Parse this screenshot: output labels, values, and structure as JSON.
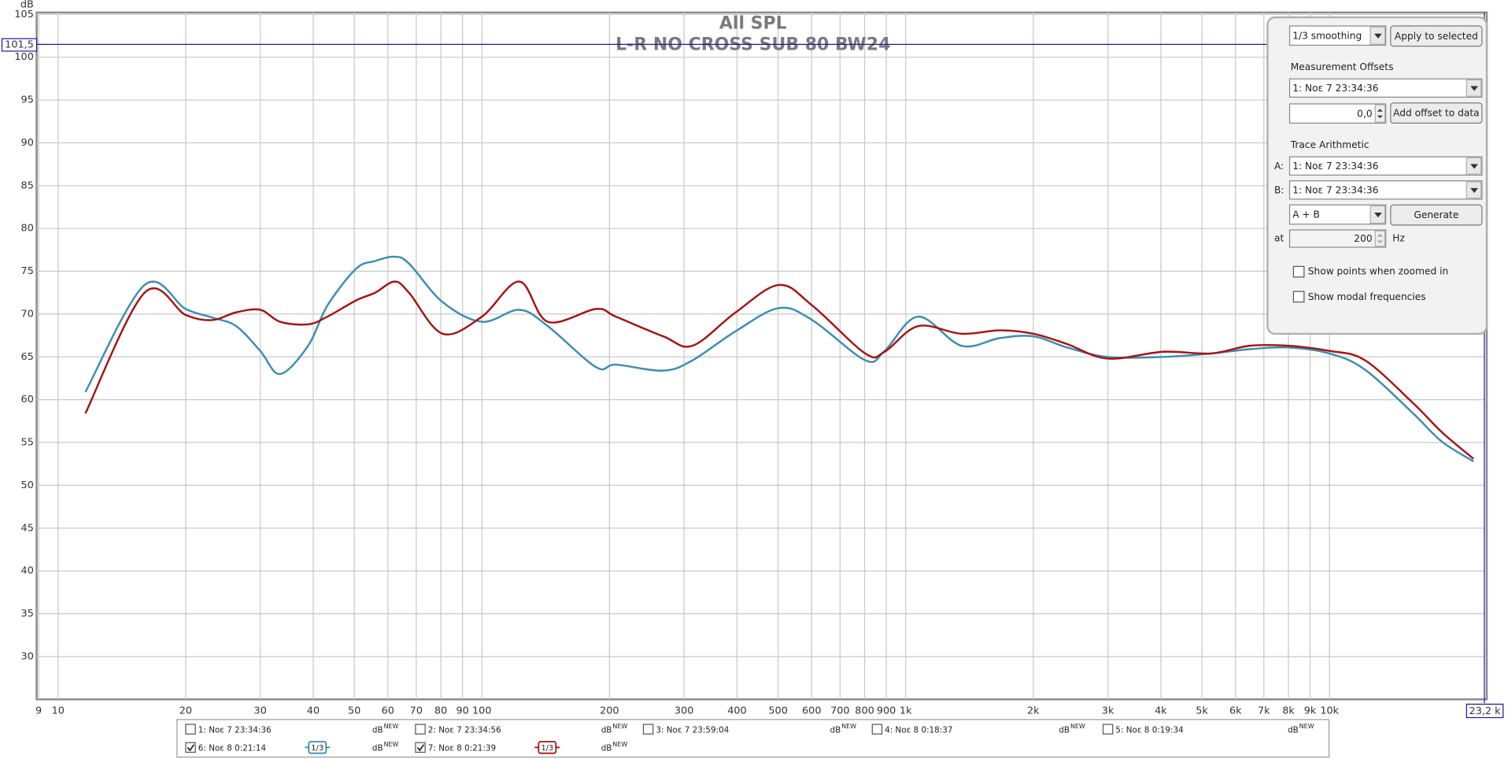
{
  "chart_data": {
    "type": "line",
    "title": "All SPL",
    "subtitle": "L-R NO CROSS SUB 80 BW24",
    "y_label": "dB",
    "log_x": true,
    "grid": true,
    "xlim": [
      8.9,
      23500
    ],
    "ylim": [
      25,
      105
    ],
    "xticks": [
      9,
      10,
      20,
      30,
      40,
      50,
      60,
      70,
      80,
      90,
      100,
      200,
      300,
      400,
      500,
      600,
      700,
      800,
      900,
      {
        "value": 1000,
        "label": "1k"
      },
      {
        "value": 2000,
        "label": "2k"
      },
      {
        "value": 3000,
        "label": "3k"
      },
      {
        "value": 4000,
        "label": "4k"
      },
      {
        "value": 5000,
        "label": "5k"
      },
      {
        "value": 6000,
        "label": "6k"
      },
      {
        "value": 7000,
        "label": "7k"
      },
      {
        "value": 8000,
        "label": "8k"
      },
      {
        "value": 9000,
        "label": "9k"
      },
      {
        "value": 10000,
        "label": "10k"
      }
    ],
    "yticks": [
      30,
      35,
      40,
      45,
      50,
      55,
      60,
      65,
      70,
      75,
      80,
      85,
      90,
      95,
      100,
      105
    ],
    "cursor": {
      "y": {
        "value": 101.5,
        "label": "101,5"
      },
      "x": {
        "value": 23200,
        "label": "23,2 k"
      },
      "color": "#1a1aa8"
    },
    "x": [
      11.6,
      16,
      20,
      23.1,
      26.3,
      30,
      33.4,
      38.9,
      43.2,
      50.5,
      56,
      62.2,
      67.3,
      80.8,
      100,
      122.6,
      143,
      186,
      207,
      268,
      314,
      397,
      502,
      602,
      803,
      892,
      1070,
      1354,
      1668,
      2003,
      2404,
      2994,
      4053,
      5260,
      6484,
      7990,
      10000,
      12130,
      15750,
      18420,
      21870
    ],
    "series": [
      {
        "name": "6: Noε 8 0:21:14",
        "color": "#3a8db5",
        "checked": true,
        "values": [
          60.9,
          73.4,
          70.6,
          69.6,
          68.6,
          65.7,
          63.0,
          66.3,
          71.0,
          75.3,
          76.2,
          76.7,
          75.9,
          71.4,
          69.1,
          70.5,
          68.6,
          63.8,
          64.1,
          63.4,
          64.6,
          68.0,
          70.7,
          69.3,
          64.6,
          65.7,
          69.7,
          66.3,
          67.2,
          67.4,
          66.1,
          65.0,
          65.0,
          65.4,
          65.9,
          66.1,
          65.4,
          63.5,
          58.4,
          55.1,
          52.8
        ]
      },
      {
        "name": "7: Noε 8 0:21:39",
        "color": "#a81212",
        "checked": true,
        "values": [
          58.4,
          72.5,
          69.9,
          69.3,
          70.2,
          70.5,
          69.1,
          68.8,
          69.7,
          71.6,
          72.5,
          73.8,
          72.5,
          67.7,
          69.7,
          73.8,
          69.1,
          70.6,
          69.7,
          67.4,
          66.3,
          70.2,
          73.4,
          71.0,
          65.4,
          65.6,
          68.6,
          67.7,
          68.1,
          67.7,
          66.5,
          64.8,
          65.6,
          65.4,
          66.3,
          66.3,
          65.7,
          64.6,
          59.6,
          56.2,
          53.1
        ]
      }
    ]
  },
  "legend": {
    "unit": "dB",
    "unit_tag": "NEW",
    "smoothing_badge": "1/3",
    "measurements": [
      {
        "name": "1: Noε 7 23:34:36",
        "color": "#3c3ca0",
        "checked": false
      },
      {
        "name": "2: Noε 7 23:34:56",
        "color": "#b03060",
        "checked": false
      },
      {
        "name": "3: Noε 7 23:59:04",
        "color": "#3a8db5",
        "checked": false
      },
      {
        "name": "4: Noε 8 0:18:37",
        "color": "#2a9a40",
        "checked": false
      },
      {
        "name": "5: Noε 8 0:19:34",
        "color": "#8a2a9a",
        "checked": false
      }
    ]
  },
  "panel": {
    "smoothing": "1/3 smoothing",
    "apply_button": "Apply to selected",
    "offsets_title": "Measurement Offsets",
    "offset_measurement": "1: Noε 7 23:34:36",
    "offset_value": "0,0",
    "offset_button": "Add offset to data",
    "arithmetic_title": "Trace Arithmetic",
    "a_label": "A:",
    "trace_a": "1: Noε 7 23:34:36",
    "b_label": "B:",
    "trace_b": "1: Noε 7 23:34:36",
    "operation": "A + B",
    "generate_button": "Generate",
    "at_label": "at",
    "at_value": "200",
    "at_unit": "Hz",
    "show_points": "Show points when zoomed in",
    "show_modal": "Show modal frequencies"
  }
}
